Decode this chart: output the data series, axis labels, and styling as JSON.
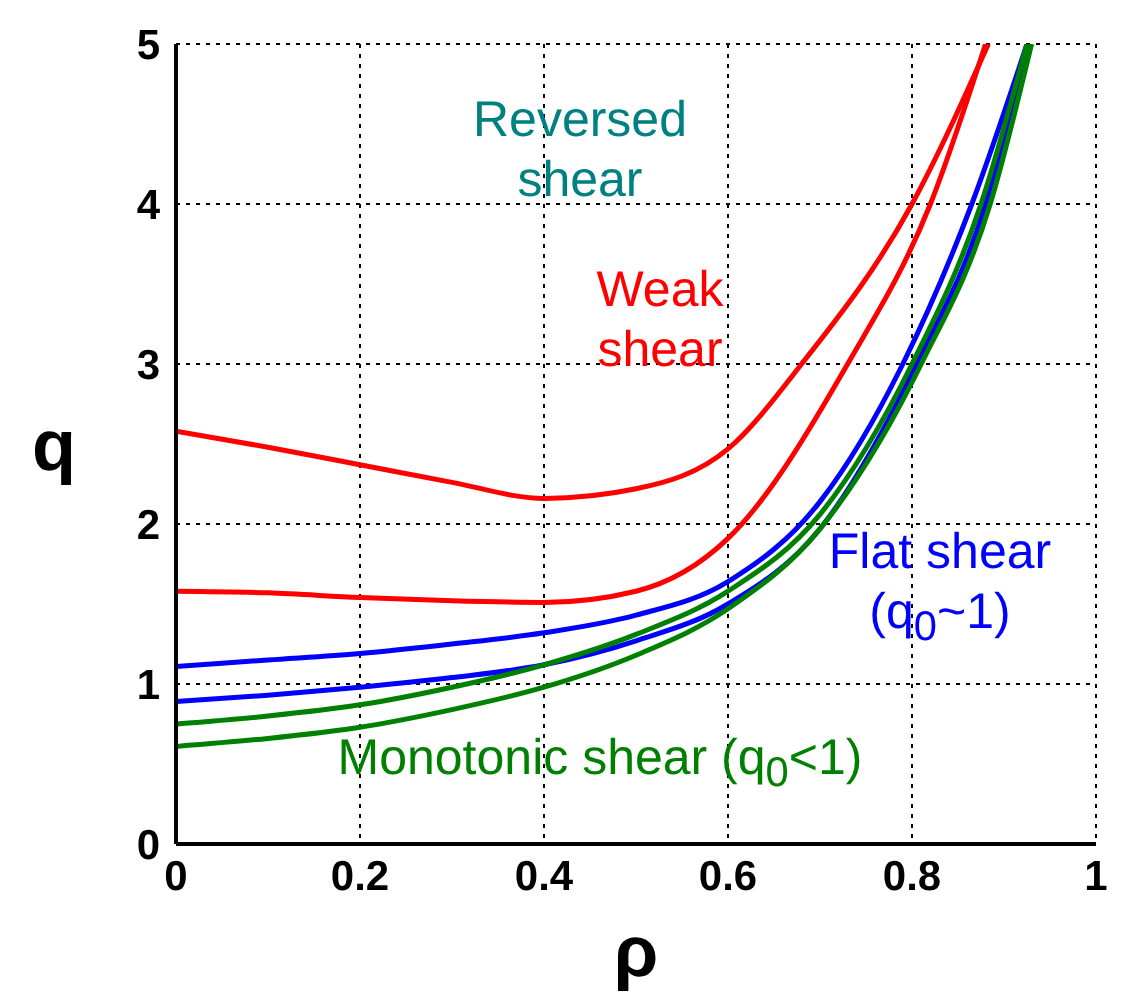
{
  "chart_data": {
    "type": "line",
    "xlabel": "ρ",
    "ylabel": "q",
    "xlim": [
      0,
      1
    ],
    "ylim": [
      0,
      5
    ],
    "xticks": [
      0,
      0.2,
      0.4,
      0.6,
      0.8,
      1
    ],
    "yticks": [
      0,
      1,
      2,
      3,
      4,
      5
    ],
    "grid": true,
    "marker": "none",
    "line_style": "solid",
    "series": [
      {
        "color": "#ff0000",
        "x": [
          0,
          0.1,
          0.2,
          0.3,
          0.4,
          0.5,
          0.6,
          0.68,
          0.8,
          0.883
        ],
        "values": [
          2.58,
          2.48,
          2.37,
          2.26,
          2.16,
          2.22,
          2.47,
          3.0,
          4.0,
          5.0
        ]
      },
      {
        "color": "#ff0000",
        "x": [
          0,
          0.1,
          0.2,
          0.3,
          0.4,
          0.5,
          0.6,
          0.73,
          0.82,
          0.88
        ],
        "values": [
          1.58,
          1.57,
          1.54,
          1.52,
          1.51,
          1.58,
          1.91,
          3.0,
          4.0,
          5.0
        ]
      },
      {
        "color": "#0000ff",
        "x": [
          0,
          0.1,
          0.2,
          0.3,
          0.4,
          0.5,
          0.6,
          0.7,
          0.79,
          0.865,
          0.925
        ],
        "values": [
          1.11,
          1.15,
          1.19,
          1.25,
          1.32,
          1.43,
          1.64,
          2.14,
          3.0,
          4.0,
          5.0
        ]
      },
      {
        "color": "#0000ff",
        "x": [
          0,
          0.1,
          0.2,
          0.3,
          0.4,
          0.5,
          0.6,
          0.7,
          0.805,
          0.88,
          0.925
        ],
        "values": [
          0.89,
          0.93,
          0.98,
          1.04,
          1.12,
          1.27,
          1.5,
          1.97,
          3.0,
          4.0,
          5.0
        ]
      },
      {
        "color": "#008000",
        "x": [
          0,
          0.1,
          0.2,
          0.3,
          0.4,
          0.5,
          0.6,
          0.7,
          0.8,
          0.875,
          0.925
        ],
        "values": [
          0.75,
          0.8,
          0.87,
          0.98,
          1.12,
          1.31,
          1.58,
          2.06,
          3.0,
          4.0,
          5.0
        ]
      },
      {
        "color": "#008000",
        "x": [
          0,
          0.1,
          0.2,
          0.3,
          0.4,
          0.5,
          0.6,
          0.7,
          0.81,
          0.885,
          0.93
        ],
        "values": [
          0.61,
          0.66,
          0.73,
          0.84,
          0.98,
          1.18,
          1.47,
          1.97,
          3.0,
          4.0,
          5.0
        ]
      }
    ],
    "annotations": [
      "Reversed\nshear",
      "Weak\nshear",
      "Flat shear\n(q$_{0}$~1)",
      "Monotonic shear (q$_{0}$<1)"
    ]
  }
}
